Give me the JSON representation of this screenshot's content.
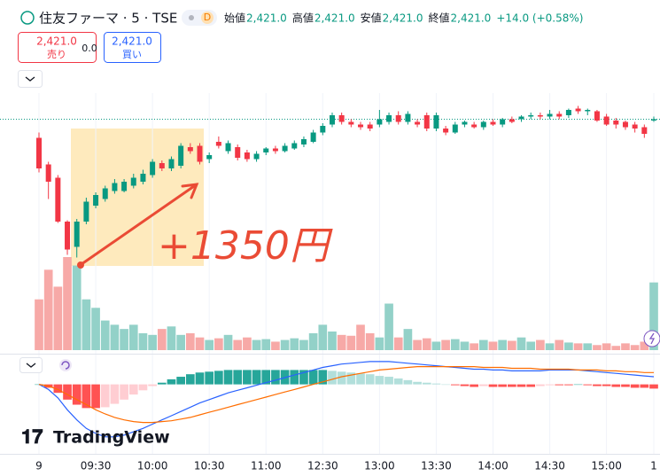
{
  "chart_data": {
    "type": "candlestick",
    "symbol": "住友ファーマ · 5 · TSE",
    "badge": "D",
    "ohlc": [
      {
        "label": "始値",
        "value": "2,421.0"
      },
      {
        "label": "高値",
        "value": "2,421.0"
      },
      {
        "label": "安値",
        "value": "2,421.0"
      },
      {
        "label": "終値",
        "value": "2,421.0"
      }
    ],
    "change": "+14.0 (+0.58%)",
    "sell": {
      "price": "2,421.0",
      "label": "売り"
    },
    "spread": "0.0",
    "buy": {
      "price": "2,421.0",
      "label": "買い"
    },
    "annotation": "+1350円",
    "logo": "TradingView",
    "categories": [
      "9",
      null,
      null,
      null,
      null,
      null,
      "09:30",
      null,
      null,
      null,
      null,
      null,
      "10:00",
      null,
      null,
      null,
      null,
      null,
      "10:30",
      null,
      null,
      null,
      null,
      null,
      "11:00",
      null,
      null,
      null,
      null,
      null,
      "12:30",
      null,
      null,
      null,
      null,
      null,
      "13:00",
      null,
      null,
      null,
      null,
      null,
      "13:30",
      null,
      null,
      null,
      null,
      null,
      "14:00",
      null,
      null,
      null,
      null,
      null,
      "14:30",
      null,
      null,
      null,
      null,
      null,
      "15:00",
      null,
      null,
      null,
      null,
      "1"
    ],
    "open": [
      2407,
      2387,
      2377,
      2344,
      2325,
      2344,
      2356,
      2361,
      2367,
      2367,
      2371,
      2374,
      2379,
      2388,
      2384,
      2386,
      2400,
      2401,
      2391,
      2404,
      2397,
      2400,
      2396,
      2391,
      2396,
      2399,
      2397,
      2399,
      2402,
      2404,
      2411,
      2417,
      2424,
      2419,
      2417,
      2417,
      2417,
      2419,
      2424,
      2419,
      2419,
      2424,
      2414,
      2414,
      2411,
      2417,
      2417,
      2415,
      2419,
      2417,
      2421,
      2421,
      2423,
      2424,
      2423,
      2425,
      2424,
      2429,
      2427,
      2427,
      2423,
      2420,
      2419,
      2417,
      2415,
      2420
    ],
    "high": [
      2411,
      2389,
      2379,
      2345,
      2346,
      2362,
      2366,
      2371,
      2376,
      2376,
      2380,
      2383,
      2391,
      2390,
      2393,
      2403,
      2403,
      2403,
      2396,
      2408,
      2405,
      2402,
      2398,
      2397,
      2400,
      2401,
      2403,
      2405,
      2408,
      2413,
      2418,
      2426,
      2426,
      2421,
      2419,
      2419,
      2428,
      2426,
      2427,
      2427,
      2421,
      2426,
      2426,
      2416,
      2419,
      2420,
      2419,
      2420,
      2421,
      2422,
      2423,
      2424,
      2426,
      2426,
      2428,
      2427,
      2429,
      2431,
      2429,
      2428,
      2425,
      2422,
      2420,
      2419,
      2417,
      2423
    ],
    "low": [
      2381,
      2361,
      2343,
      2319,
      2317,
      2342,
      2354,
      2359,
      2365,
      2366,
      2369,
      2372,
      2377,
      2382,
      2382,
      2384,
      2395,
      2387,
      2388,
      2399,
      2395,
      2390,
      2389,
      2389,
      2394,
      2395,
      2396,
      2398,
      2400,
      2403,
      2409,
      2415,
      2417,
      2415,
      2413,
      2412,
      2415,
      2417,
      2417,
      2417,
      2415,
      2412,
      2412,
      2409,
      2410,
      2415,
      2414,
      2413,
      2416,
      2415,
      2418,
      2419,
      2421,
      2421,
      2421,
      2421,
      2422,
      2425,
      2424,
      2419,
      2416,
      2414,
      2413,
      2411,
      2407,
      2419
    ],
    "close": [
      2384,
      2374,
      2344,
      2323,
      2344,
      2359,
      2364,
      2369,
      2373,
      2374,
      2377,
      2380,
      2389,
      2384,
      2391,
      2401,
      2397,
      2389,
      2394,
      2401,
      2403,
      2392,
      2391,
      2395,
      2399,
      2397,
      2401,
      2403,
      2406,
      2411,
      2416,
      2424,
      2419,
      2417,
      2415,
      2414,
      2421,
      2424,
      2419,
      2425,
      2417,
      2414,
      2424,
      2411,
      2417,
      2419,
      2415,
      2419,
      2417,
      2421,
      2419,
      2423,
      2424,
      2423,
      2425,
      2423,
      2428,
      2427,
      2428,
      2420,
      2417,
      2417,
      2415,
      2414,
      2410,
      2421
    ],
    "ylim": [
      2314,
      2434
    ],
    "last_price": 2421,
    "volume": [
      60,
      95,
      75,
      110,
      100,
      60,
      50,
      35,
      30,
      25,
      30,
      20,
      18,
      25,
      28,
      18,
      20,
      15,
      12,
      14,
      18,
      12,
      15,
      12,
      13,
      10,
      12,
      14,
      12,
      20,
      30,
      22,
      18,
      17,
      30,
      20,
      15,
      55,
      15,
      25,
      12,
      14,
      10,
      12,
      13,
      10,
      8,
      12,
      10,
      12,
      11,
      15,
      10,
      12,
      8,
      12,
      9,
      8,
      8,
      6,
      8,
      5,
      8,
      6,
      10,
      80
    ],
    "volume_ylim": [
      0,
      110
    ],
    "histogram": [
      0,
      -4,
      -10,
      -18,
      -24,
      -28,
      -28,
      -27,
      -23,
      -18,
      -12,
      -7,
      -2,
      2,
      6,
      9,
      12,
      14,
      15,
      16,
      17,
      17,
      17,
      17,
      17,
      17,
      17,
      17,
      17,
      17,
      17,
      16,
      15,
      14,
      13,
      12,
      10,
      9,
      7,
      5,
      3,
      2,
      1,
      0,
      -1,
      -2,
      -3,
      -2,
      -3,
      -3,
      -3,
      -3,
      -3,
      -2,
      -1,
      -1,
      -1,
      0,
      -1,
      -2,
      -2,
      -3,
      -3,
      -4,
      -4,
      -5
    ],
    "macd": [
      0,
      -6,
      -16,
      -30,
      -42,
      -52,
      -58,
      -62,
      -62,
      -60,
      -56,
      -52,
      -47,
      -42,
      -37,
      -32,
      -27,
      -22,
      -18,
      -14,
      -10,
      -7,
      -4,
      -1,
      2,
      5,
      8,
      11,
      14,
      17,
      20,
      22,
      24,
      25,
      26,
      27,
      27,
      27,
      26,
      25,
      24,
      23,
      22,
      21,
      20,
      19,
      18,
      18,
      17,
      17,
      16,
      16,
      16,
      16,
      17,
      17,
      17,
      17,
      16,
      15,
      14,
      13,
      12,
      11,
      10,
      9
    ],
    "signal": [
      0,
      -2,
      -6,
      -12,
      -18,
      -24,
      -30,
      -35,
      -39,
      -42,
      -44,
      -45,
      -45,
      -44,
      -43,
      -41,
      -39,
      -36,
      -33,
      -30,
      -27,
      -24,
      -21,
      -18,
      -15,
      -12,
      -9,
      -6,
      -3,
      0,
      3,
      6,
      9,
      11,
      13,
      15,
      17,
      18,
      19,
      20,
      21,
      21,
      21,
      21,
      21,
      21,
      21,
      20,
      20,
      20,
      19,
      19,
      19,
      18,
      18,
      18,
      18,
      17,
      17,
      17,
      16,
      16,
      15,
      15,
      14,
      14
    ],
    "macd_ylim": [
      -80,
      30
    ],
    "colors": {
      "up": "#089981",
      "down": "#f23645",
      "volume_up": "#93d1c8",
      "volume_down": "#f7a9a7",
      "macd": "#2962ff",
      "signal": "#ff6d00",
      "hist_up_strong": "#26a69a",
      "hist_up_weak": "#b2dfdb",
      "hist_down_strong": "#ff5252",
      "hist_down_weak": "#ffcdd2"
    }
  }
}
